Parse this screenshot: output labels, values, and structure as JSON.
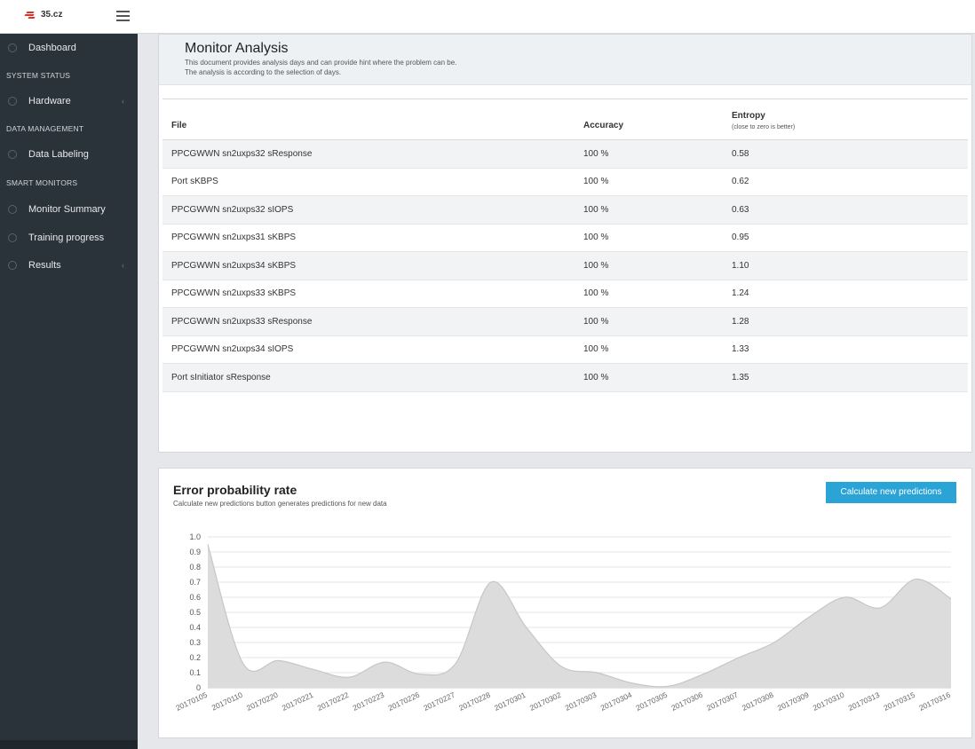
{
  "header": {
    "logo_text": "35.cz",
    "brand_color": "#d9342b",
    "menu_icon": "hamburger-icon"
  },
  "sidebar": {
    "items": [
      {
        "label": "Dashboard",
        "icon": "dashboard-icon",
        "caret": ""
      },
      {
        "section": "SYSTEM STATUS"
      },
      {
        "label": "Hardware",
        "icon": "tag-icon",
        "caret": "‹"
      },
      {
        "section": "DATA MANAGEMENT"
      },
      {
        "label": "Data Labeling",
        "icon": "label-icon",
        "caret": ""
      },
      {
        "section": "SMART MONITORS"
      },
      {
        "label": "Monitor Summary",
        "icon": "summary-icon",
        "caret": ""
      },
      {
        "label": "Training progress",
        "icon": "progress-icon",
        "caret": ""
      },
      {
        "label": "Results",
        "icon": "results-icon",
        "caret": "‹"
      }
    ]
  },
  "analysis": {
    "title": "Monitor Analysis",
    "desc_line1": "This document provides analysis days and can provide hint where the problem can be.",
    "desc_line2": "The analysis is according to the selection of days.",
    "columns": {
      "file": "File",
      "accuracy": "Accuracy",
      "entropy": "Entropy",
      "entropy_note": "(close to zero is better)"
    },
    "rows": [
      {
        "file": "PPCGWWN sn2uxps32 sResponse",
        "accuracy": "100 %",
        "entropy": "0.58"
      },
      {
        "file": "Port sKBPS",
        "accuracy": "100 %",
        "entropy": "0.62"
      },
      {
        "file": "PPCGWWN sn2uxps32 sIOPS",
        "accuracy": "100 %",
        "entropy": "0.63"
      },
      {
        "file": "PPCGWWN sn2uxps31 sKBPS",
        "accuracy": "100 %",
        "entropy": "0.95"
      },
      {
        "file": "PPCGWWN sn2uxps34 sKBPS",
        "accuracy": "100 %",
        "entropy": "1.10"
      },
      {
        "file": "PPCGWWN sn2uxps33 sKBPS",
        "accuracy": "100 %",
        "entropy": "1.24"
      },
      {
        "file": "PPCGWWN sn2uxps33 sResponse",
        "accuracy": "100 %",
        "entropy": "1.28"
      },
      {
        "file": "PPCGWWN sn2uxps34 sIOPS",
        "accuracy": "100 %",
        "entropy": "1.33"
      },
      {
        "file": "Port sInitiator sResponse",
        "accuracy": "100 %",
        "entropy": "1.35"
      }
    ]
  },
  "error_panel": {
    "title": "Error probability rate",
    "subtitle": "Calculate new predictions button generates predictions for new data",
    "button_label": "Calculate new predictions",
    "button_color": "#2aa4d7"
  },
  "chart_data": {
    "type": "area",
    "x": [
      "20170105",
      "20170110",
      "20170220",
      "20170221",
      "20170222",
      "20170223",
      "20170226",
      "20170227",
      "20170228",
      "20170301",
      "20170302",
      "20170303",
      "20170304",
      "20170305",
      "20170306",
      "20170307",
      "20170308",
      "20170309",
      "20170310",
      "20170313",
      "20170315",
      "20170316"
    ],
    "values": [
      0.95,
      0.16,
      0.18,
      0.12,
      0.07,
      0.17,
      0.09,
      0.16,
      0.7,
      0.4,
      0.14,
      0.1,
      0.03,
      0.01,
      0.09,
      0.2,
      0.3,
      0.47,
      0.6,
      0.53,
      0.72,
      0.59
    ],
    "ylim": [
      0,
      1.0
    ],
    "yticks": [
      "0",
      "0.1",
      "0.2",
      "0.3",
      "0.4",
      "0.5",
      "0.6",
      "0.7",
      "0.8",
      "0.9",
      "1.0"
    ],
    "grid": true,
    "fill_color": "#dcdcdc",
    "line_color": "#c6c6c6"
  }
}
